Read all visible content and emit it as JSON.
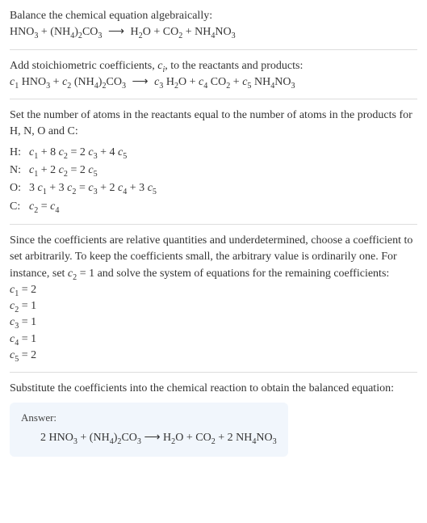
{
  "intro": {
    "line1": "Balance the chemical equation algebraically:"
  },
  "eq1": {
    "species": [
      "HNO",
      "(NH",
      ")",
      "CO",
      "H",
      "O",
      "CO",
      "NH",
      "NO"
    ],
    "sub1": "3",
    "sub2": "4",
    "sub3": "2",
    "plus": "+",
    "arrow": "⟶"
  },
  "step2": {
    "text": "Add stoichiometric coefficients, ",
    "ci": "c",
    "ci_sub": "i",
    "text2": ", to the reactants and products:"
  },
  "coeff_eq": {
    "c": "c",
    "s1": "1",
    "s2": "2",
    "s3": "3",
    "s4": "4",
    "s5": "5",
    "sp": " "
  },
  "step3": {
    "text": "Set the number of atoms in the reactants equal to the number of atoms in the products for H, N, O and C:"
  },
  "atoms": {
    "rows": [
      {
        "el": "H:",
        "eq": {
          "lhs_a": "c",
          "lhs_a_sub": "1",
          "op1": " + 8 ",
          "lhs_b": "c",
          "lhs_b_sub": "2",
          "eq": " = 2 ",
          "rhs_a": "c",
          "rhs_a_sub": "3",
          "op2": " + 4 ",
          "rhs_b": "c",
          "rhs_b_sub": "5"
        }
      },
      {
        "el": "N:",
        "eq": {
          "lhs_a": "c",
          "lhs_a_sub": "1",
          "op1": " + 2 ",
          "lhs_b": "c",
          "lhs_b_sub": "2",
          "eq": " = 2 ",
          "rhs_a": "c",
          "rhs_a_sub": "5",
          "op2": "",
          "rhs_b": "",
          "rhs_b_sub": ""
        }
      },
      {
        "el": "O:",
        "eq": {
          "pre": "3 ",
          "lhs_a": "c",
          "lhs_a_sub": "1",
          "op1": " + 3 ",
          "lhs_b": "c",
          "lhs_b_sub": "2",
          "eq": " = ",
          "rhs_a": "c",
          "rhs_a_sub": "3",
          "op2": " + 2 ",
          "rhs_b": "c",
          "rhs_b_sub": "4",
          "op3": " + 3 ",
          "rhs_c": "c",
          "rhs_c_sub": "5"
        }
      },
      {
        "el": "C:",
        "eq": {
          "lhs_a": "c",
          "lhs_a_sub": "2",
          "eq": " = ",
          "rhs_a": "c",
          "rhs_a_sub": "4"
        }
      }
    ]
  },
  "step4": {
    "text1": "Since the coefficients are relative quantities and underdetermined, choose a coefficient to set arbitrarily. To keep the coefficients small, the arbitrary value is ordinarily one. For instance, set ",
    "c2": "c",
    "c2_sub": "2",
    "text2": " = 1 and solve the system of equations for the remaining coefficients:"
  },
  "solved": [
    {
      "c": "c",
      "sub": "1",
      "val": " = 2"
    },
    {
      "c": "c",
      "sub": "2",
      "val": " = 1"
    },
    {
      "c": "c",
      "sub": "3",
      "val": " = 1"
    },
    {
      "c": "c",
      "sub": "4",
      "val": " = 1"
    },
    {
      "c": "c",
      "sub": "5",
      "val": " = 2"
    }
  ],
  "step5": {
    "text": "Substitute the coefficients into the chemical reaction to obtain the balanced equation:"
  },
  "answer": {
    "label": "Answer:",
    "two": "2 ",
    "plus": " + ",
    "arrow": " ⟶ "
  }
}
